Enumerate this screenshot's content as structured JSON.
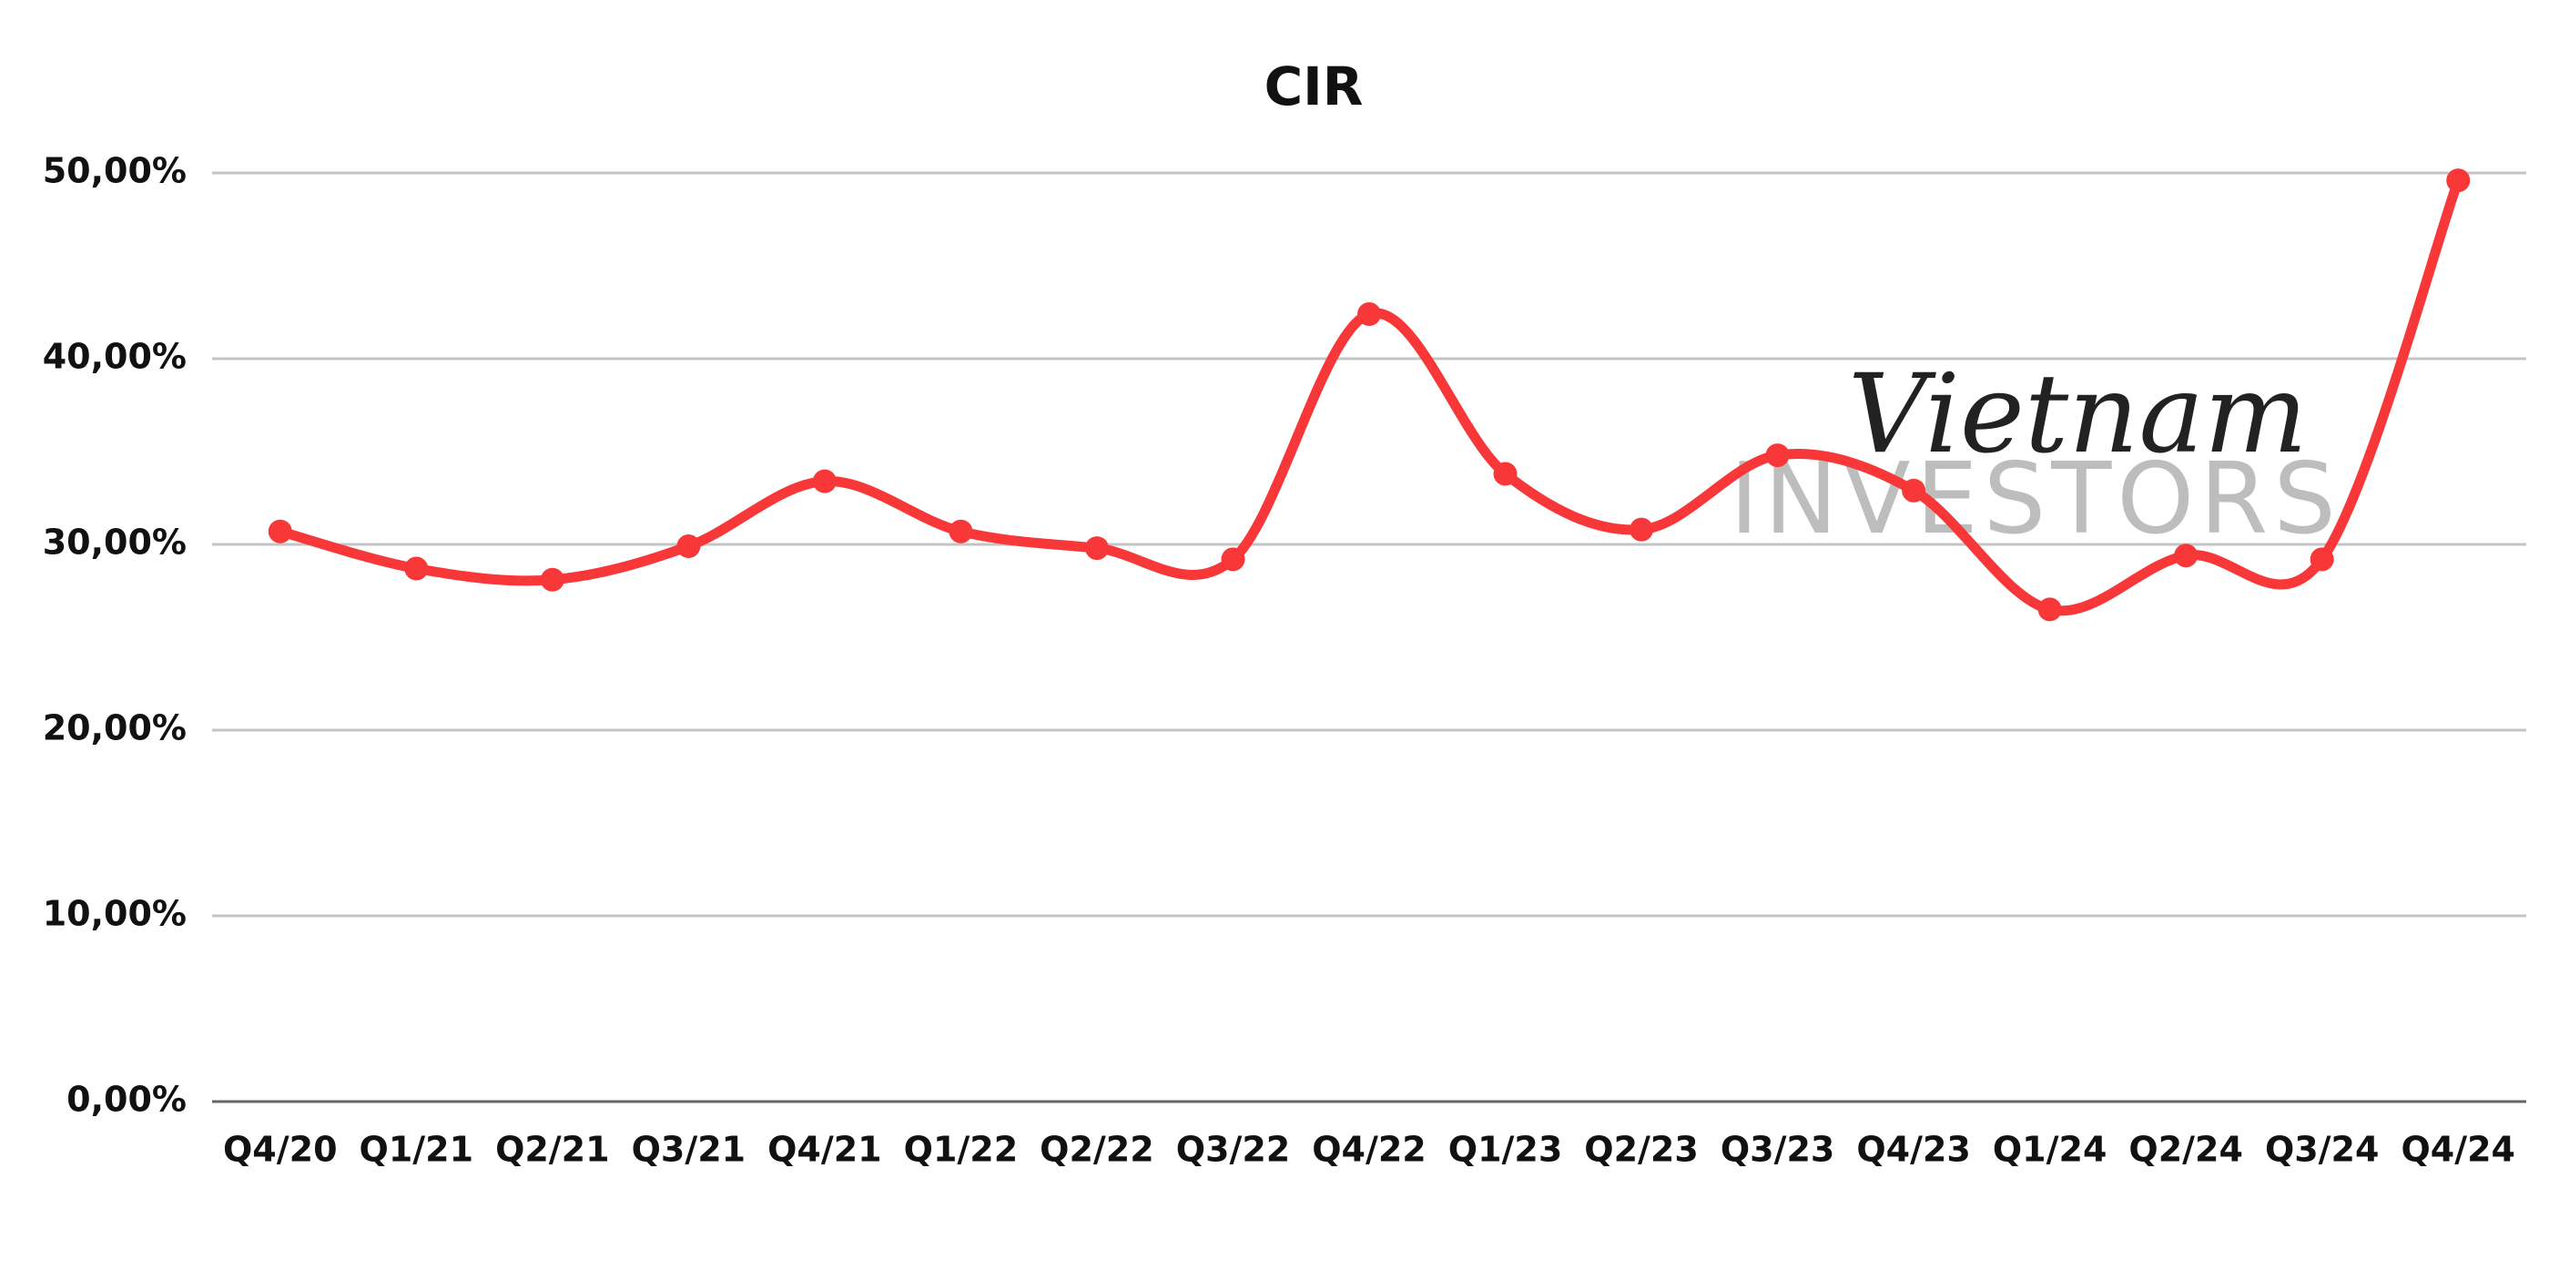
{
  "chart_data": {
    "type": "line",
    "title": "CIR",
    "categories": [
      "Q4/20",
      "Q1/21",
      "Q2/21",
      "Q3/21",
      "Q4/21",
      "Q1/22",
      "Q2/22",
      "Q3/22",
      "Q4/22",
      "Q1/23",
      "Q2/23",
      "Q3/23",
      "Q4/23",
      "Q1/24",
      "Q2/24",
      "Q3/24",
      "Q4/24"
    ],
    "series": [
      {
        "name": "CIR",
        "color": "#f83838",
        "values": [
          30.7,
          28.7,
          28.1,
          29.9,
          33.4,
          30.7,
          29.8,
          29.2,
          42.4,
          33.8,
          30.8,
          34.8,
          32.9,
          26.5,
          29.4,
          29.2,
          49.6
        ]
      }
    ],
    "ylim": [
      0,
      50
    ],
    "yticks": [
      {
        "value": 0,
        "label": "0,00%"
      },
      {
        "value": 10,
        "label": "10,00%"
      },
      {
        "value": 20,
        "label": "20,00%"
      },
      {
        "value": 30,
        "label": "30,00%"
      },
      {
        "value": 40,
        "label": "40,00%"
      },
      {
        "value": 50,
        "label": "50,00%"
      }
    ],
    "grid": true,
    "smooth": true,
    "watermark": {
      "line1": "Vietnam",
      "line2": "INVESTORS"
    }
  }
}
